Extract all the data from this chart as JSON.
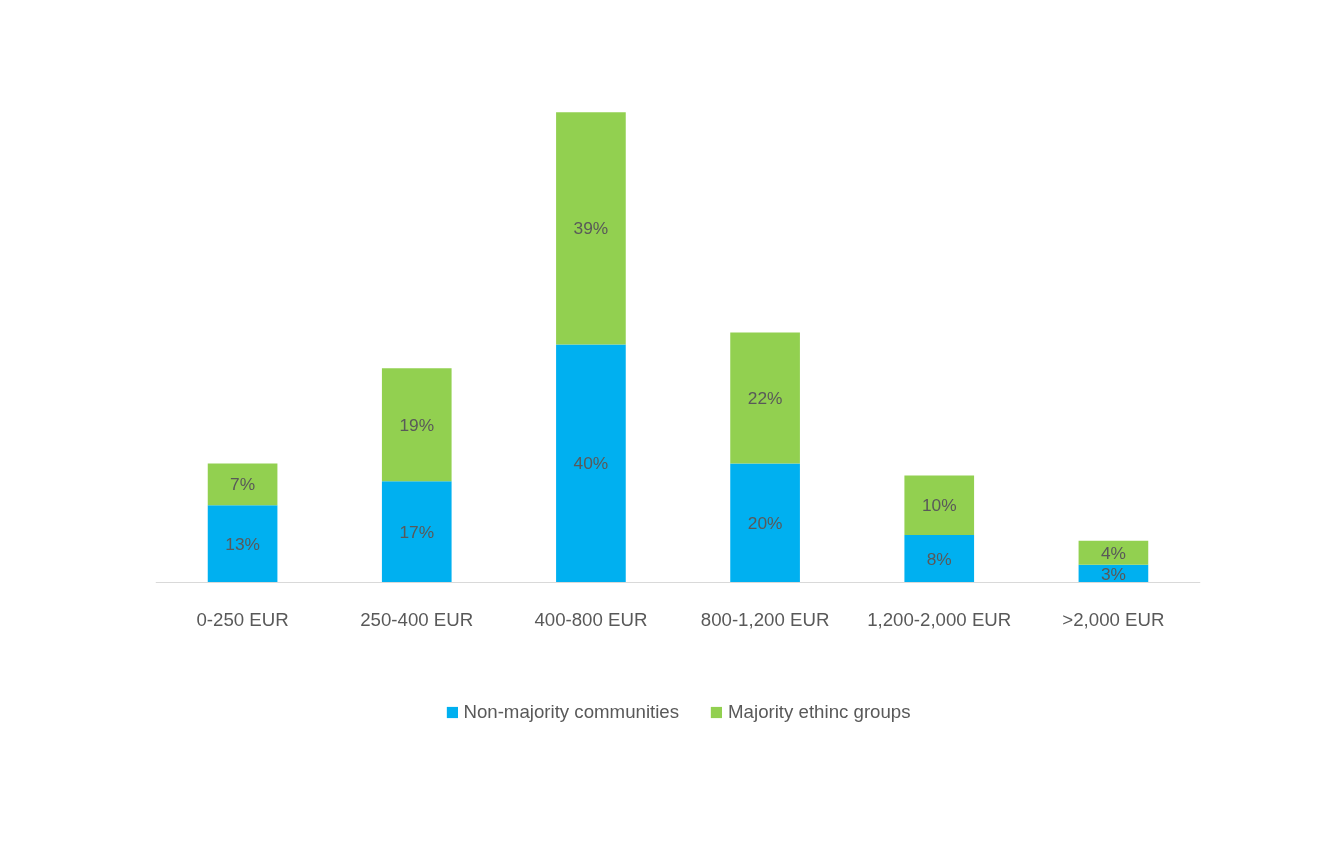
{
  "chart_data": {
    "type": "bar",
    "stacked": true,
    "categories": [
      "0-250 EUR",
      "250-400 EUR",
      "400-800 EUR",
      "800-1,200 EUR",
      "1,200-2,000 EUR",
      ">2,000 EUR"
    ],
    "series": [
      {
        "name": "Non-majority communities",
        "color": "#00b0f0",
        "values": [
          13,
          17,
          40,
          20,
          8,
          3
        ],
        "value_labels": [
          "13%",
          "17%",
          "40%",
          "20%",
          "8%",
          "3%"
        ]
      },
      {
        "name": "Majority ethinc groups",
        "color": "#92d050",
        "values": [
          7,
          19,
          39,
          22,
          10,
          4
        ],
        "value_labels": [
          "7%",
          "19%",
          "39%",
          "22%",
          "10%",
          "4%"
        ]
      }
    ],
    "legend": "bottom",
    "grid": false
  }
}
